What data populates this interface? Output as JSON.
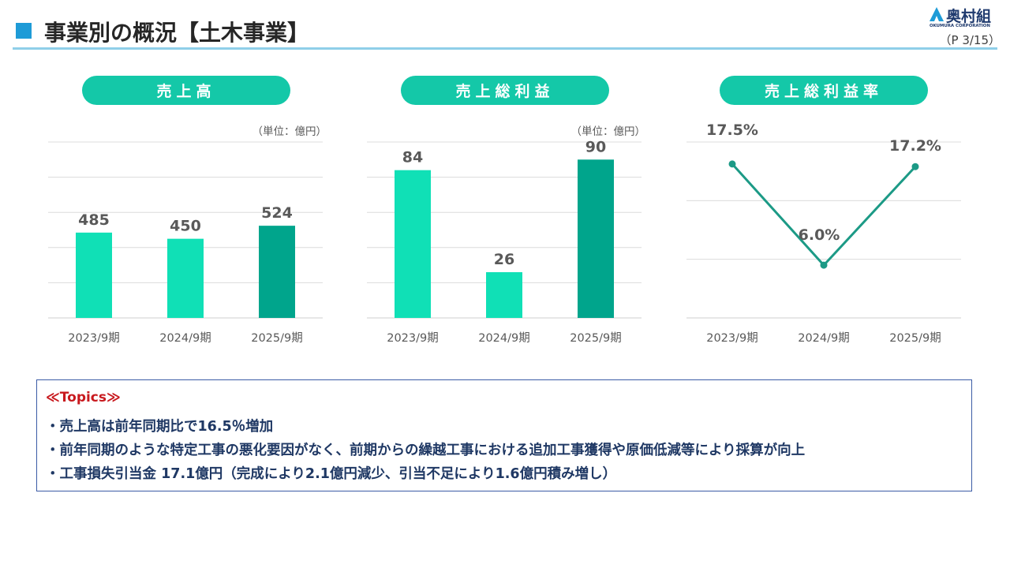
{
  "header": {
    "title": "事業別の概況【土木事業】",
    "page": "（P 3/15）",
    "logo_text": "奥村組",
    "logo_subtext": "OKUMURA CORPORATION"
  },
  "panels": [
    {
      "label": "売上高",
      "unit": "（単位：億円）"
    },
    {
      "label": "売上総利益",
      "unit": "（単位：億円）"
    },
    {
      "label": "売上総利益率"
    }
  ],
  "chart_data": [
    {
      "type": "bar",
      "title": "売上高",
      "unit": "（単位：億円）",
      "categories": [
        "2023/9期",
        "2024/9期",
        "2025/9期"
      ],
      "values": [
        485,
        450,
        524
      ],
      "value_labels": [
        "485",
        "450",
        "524"
      ],
      "ylim": [
        0,
        1000
      ],
      "grid": true,
      "colors": [
        "#10e0b6",
        "#10e0b6",
        "#00a58c"
      ]
    },
    {
      "type": "bar",
      "title": "売上総利益",
      "unit": "（単位：億円）",
      "categories": [
        "2023/9期",
        "2024/9期",
        "2025/9期"
      ],
      "values": [
        84,
        26,
        90
      ],
      "value_labels": [
        "84",
        "26",
        "90"
      ],
      "ylim": [
        0,
        100
      ],
      "grid": true,
      "colors": [
        "#10e0b6",
        "#10e0b6",
        "#00a58c"
      ]
    },
    {
      "type": "line",
      "title": "売上総利益率",
      "categories": [
        "2023/9期",
        "2024/9期",
        "2025/9期"
      ],
      "values": [
        17.5,
        6.0,
        17.2
      ],
      "value_labels": [
        "17.5%",
        "6.0%",
        "17.2%"
      ],
      "ylim": [
        0,
        20
      ],
      "grid": true,
      "colors": [
        "#1c9a86"
      ]
    }
  ],
  "topics": {
    "title": "≪Topics≫",
    "lines": [
      "・売上高は前年同期比で16.5％増加",
      "・前年同期のような特定工事の悪化要因がなく、前期からの繰越工事における追加工事獲得や原価低減等により採算が向上",
      "・工事損失引当金 17.1億円（完成により2.1億円減少、引当不足により1.6億円積み増し）"
    ]
  },
  "colors": {
    "accent_blue": "#1e9bd7",
    "rule": "#8fcfe9",
    "pill": "#14c8a8",
    "bar_light": "#10e0b6",
    "bar_dark": "#00a58c",
    "line": "#1c9a86",
    "topics_border": "#3b5ba5",
    "topics_title": "#c8191e",
    "topics_text": "#1f3864"
  }
}
